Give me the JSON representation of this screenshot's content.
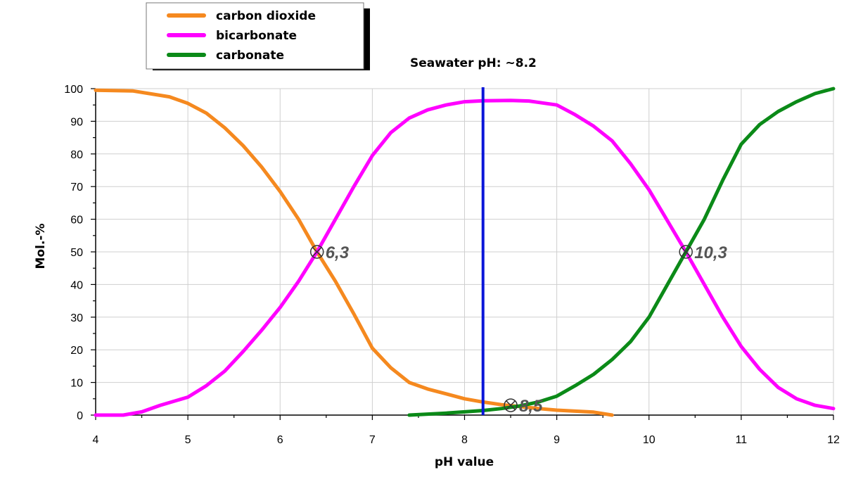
{
  "chart_data": {
    "type": "line",
    "xlabel": "pH value",
    "ylabel": "Mol.-%",
    "xlim": [
      4,
      12
    ],
    "ylim": [
      0,
      100
    ],
    "x_ticks": [
      "4",
      "5",
      "6",
      "7",
      "8",
      "9",
      "10",
      "11",
      "12"
    ],
    "y_ticks": [
      "0",
      "10",
      "20",
      "30",
      "40",
      "50",
      "60",
      "70",
      "80",
      "90",
      "100"
    ],
    "grid": true,
    "legend_position": "top-left",
    "series": [
      {
        "name": "carbon dioxide",
        "color": "#F5891F",
        "points": [
          [
            4.0,
            99.5
          ],
          [
            4.4,
            99.3
          ],
          [
            4.8,
            97.5
          ],
          [
            5.0,
            95.5
          ],
          [
            5.2,
            92.5
          ],
          [
            5.4,
            88
          ],
          [
            5.6,
            82.5
          ],
          [
            5.8,
            76
          ],
          [
            6.0,
            68.5
          ],
          [
            6.2,
            60
          ],
          [
            6.4,
            50
          ],
          [
            6.6,
            41
          ],
          [
            6.8,
            31
          ],
          [
            7.0,
            20.5
          ],
          [
            7.2,
            14.5
          ],
          [
            7.4,
            10
          ],
          [
            7.6,
            8
          ],
          [
            7.8,
            6.5
          ],
          [
            8.0,
            5
          ],
          [
            8.2,
            4
          ],
          [
            8.4,
            3.2
          ],
          [
            8.6,
            2.6
          ],
          [
            8.8,
            2.0
          ],
          [
            9.0,
            1.5
          ],
          [
            9.2,
            1.2
          ],
          [
            9.4,
            0.9
          ],
          [
            9.6,
            0
          ]
        ]
      },
      {
        "name": "bicarbonate",
        "color": "#FF00FF",
        "points": [
          [
            4.0,
            0
          ],
          [
            4.3,
            0
          ],
          [
            4.5,
            1
          ],
          [
            4.7,
            3
          ],
          [
            5.0,
            5.5
          ],
          [
            5.2,
            9
          ],
          [
            5.4,
            13.5
          ],
          [
            5.6,
            19.5
          ],
          [
            5.8,
            26
          ],
          [
            6.0,
            33
          ],
          [
            6.2,
            41
          ],
          [
            6.4,
            50
          ],
          [
            6.6,
            60
          ],
          [
            6.8,
            70
          ],
          [
            7.0,
            79.5
          ],
          [
            7.2,
            86.5
          ],
          [
            7.4,
            91
          ],
          [
            7.6,
            93.5
          ],
          [
            7.8,
            95
          ],
          [
            8.0,
            96
          ],
          [
            8.2,
            96.3
          ],
          [
            8.5,
            96.4
          ],
          [
            8.7,
            96.2
          ],
          [
            9.0,
            95
          ],
          [
            9.2,
            92
          ],
          [
            9.4,
            88.5
          ],
          [
            9.6,
            84
          ],
          [
            9.8,
            77
          ],
          [
            10.0,
            69
          ],
          [
            10.2,
            59.5
          ],
          [
            10.4,
            50
          ],
          [
            10.6,
            40
          ],
          [
            10.8,
            30
          ],
          [
            11.0,
            21
          ],
          [
            11.2,
            14
          ],
          [
            11.4,
            8.5
          ],
          [
            11.6,
            5
          ],
          [
            11.8,
            3
          ],
          [
            12.0,
            2
          ]
        ]
      },
      {
        "name": "carbonate",
        "color": "#0B8A18",
        "points": [
          [
            7.4,
            0
          ],
          [
            7.8,
            0.6
          ],
          [
            8.0,
            1.0
          ],
          [
            8.2,
            1.4
          ],
          [
            8.4,
            2.0
          ],
          [
            8.6,
            2.8
          ],
          [
            8.8,
            4.0
          ],
          [
            9.0,
            5.8
          ],
          [
            9.2,
            9
          ],
          [
            9.4,
            12.5
          ],
          [
            9.6,
            17
          ],
          [
            9.8,
            22.5
          ],
          [
            10.0,
            30
          ],
          [
            10.2,
            40
          ],
          [
            10.4,
            50
          ],
          [
            10.6,
            60
          ],
          [
            10.8,
            72
          ],
          [
            11.0,
            83
          ],
          [
            11.2,
            89
          ],
          [
            11.4,
            93
          ],
          [
            11.6,
            96
          ],
          [
            11.8,
            98.5
          ],
          [
            12.0,
            100
          ]
        ]
      }
    ],
    "vertical_line": {
      "x": 8.2,
      "color": "#0A16D9",
      "label": "Seawater pH: ~8.2"
    },
    "markers": [
      {
        "x": 6.4,
        "y": 50,
        "label": "6,3"
      },
      {
        "x": 8.5,
        "y": 3,
        "label": "8,5"
      },
      {
        "x": 10.4,
        "y": 50,
        "label": "10,3"
      }
    ]
  }
}
